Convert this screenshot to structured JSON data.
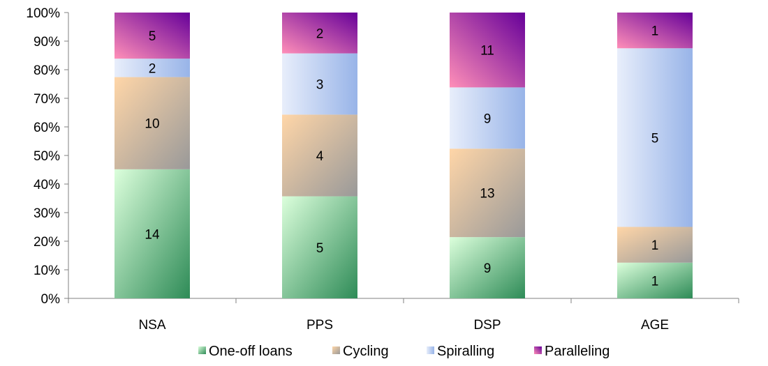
{
  "chart_data": {
    "type": "bar",
    "stacked": "percent",
    "categories": [
      "NSA",
      "PPS",
      "DSP",
      "AGE"
    ],
    "series": [
      {
        "name": "One-off loans",
        "values": [
          14,
          5,
          9,
          1
        ],
        "color": "#3fa860"
      },
      {
        "name": "Cycling",
        "values": [
          10,
          4,
          13,
          1
        ],
        "color": "#d89e72"
      },
      {
        "name": "Spiralling",
        "values": [
          2,
          3,
          9,
          5
        ],
        "color": "#9bb8e8"
      },
      {
        "name": "Paralleling",
        "values": [
          5,
          2,
          11,
          1
        ],
        "color": "#b8268f"
      }
    ],
    "y_ticks": [
      "0%",
      "10%",
      "20%",
      "30%",
      "40%",
      "50%",
      "60%",
      "70%",
      "80%",
      "90%",
      "100%"
    ],
    "ylim": [
      0,
      100
    ],
    "title": "",
    "xlabel": "",
    "ylabel": "",
    "grid": false,
    "legend_position": "bottom"
  }
}
